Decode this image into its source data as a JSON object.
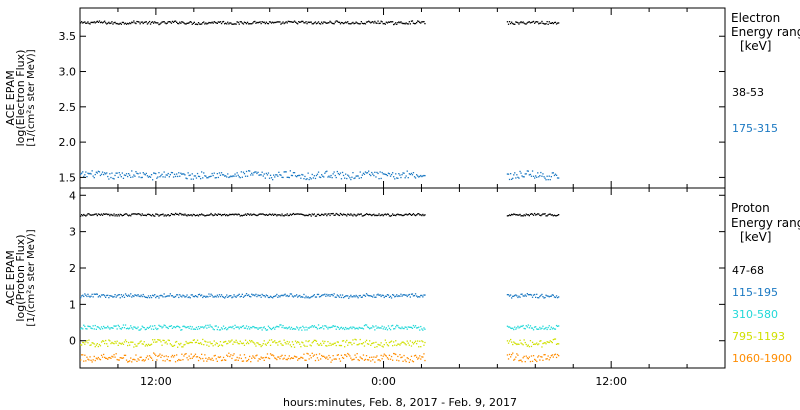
{
  "xlabel": "hours:minutes, Feb.  8, 2017 - Feb.  9, 2017",
  "chart_data": [
    {
      "type": "scatter",
      "panel": "electron",
      "ylabel_lines": [
        "ACE EPAM",
        "log(Electron Flux)",
        "[1/(cm²s ster MeV)]"
      ],
      "legend_lines": [
        "Electron",
        "Energy ranges",
        "[keV]"
      ],
      "legend_placement": "right",
      "yticks": [
        1.5,
        2.0,
        2.5,
        3.0,
        3.5
      ],
      "ytick_labels": [
        "1.5",
        "2.0",
        "2.5",
        "3.0",
        "3.5"
      ],
      "ylim": [
        1.35,
        3.9
      ],
      "xlim_hours": [
        8.0,
        42.0
      ],
      "xticks_hours": [
        12,
        24,
        36
      ],
      "xtick_labels": [
        "12:00",
        "0:00",
        "12:00"
      ],
      "data_segments_hours": [
        [
          8.0,
          26.2
        ],
        [
          30.5,
          33.2
        ]
      ],
      "series": [
        {
          "name": "38-53",
          "color": "#000000",
          "level": 3.7,
          "noise": 0.02
        },
        {
          "name": "175-315",
          "color": "#1a78c2",
          "level": 1.54,
          "noise": 0.05
        }
      ]
    },
    {
      "type": "scatter",
      "panel": "proton",
      "ylabel_lines": [
        "ACE EPAM",
        "log(Proton Flux)",
        "[1/(cm²s ster MeV)]"
      ],
      "legend_lines": [
        "Proton",
        "Energy ranges",
        "[keV]"
      ],
      "legend_placement": "right",
      "yticks": [
        0,
        1,
        2,
        3,
        4
      ],
      "ytick_labels": [
        "0",
        "1",
        "2",
        "3",
        "4"
      ],
      "ylim": [
        -0.75,
        4.2
      ],
      "xlim_hours": [
        8.0,
        42.0
      ],
      "xticks_hours": [
        12,
        24,
        36
      ],
      "xtick_labels": [
        "12:00",
        "0:00",
        "12:00"
      ],
      "data_segments_hours": [
        [
          8.0,
          26.2
        ],
        [
          30.5,
          33.2
        ]
      ],
      "series": [
        {
          "name": "47-68",
          "color": "#000000",
          "level": 3.48,
          "noise": 0.03
        },
        {
          "name": "115-195",
          "color": "#1a78c2",
          "level": 1.25,
          "noise": 0.05
        },
        {
          "name": "310-580",
          "color": "#22d8d8",
          "level": 0.38,
          "noise": 0.06
        },
        {
          "name": "795-1193",
          "color": "#d0e000",
          "level": -0.05,
          "noise": 0.09
        },
        {
          "name": "1060-1900",
          "color": "#ff8c00",
          "level": -0.45,
          "noise": 0.1
        }
      ]
    }
  ]
}
